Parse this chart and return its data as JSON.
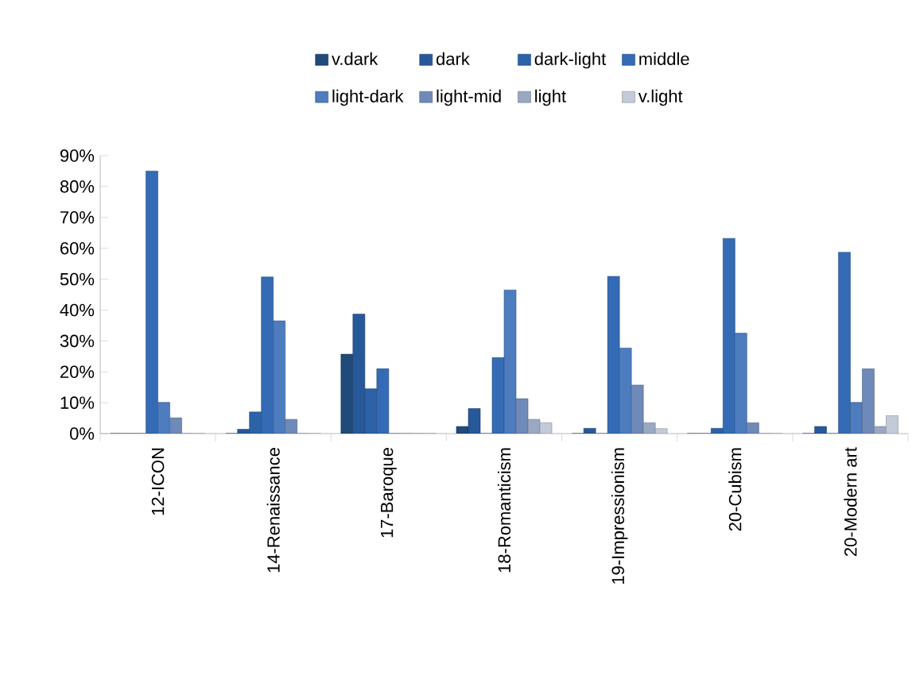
{
  "chart_data": {
    "type": "bar",
    "categories": [
      "12-ICON",
      "14-Renaissance",
      "17-Baroque",
      "18-Romanticism",
      "19-Impressionism",
      "20-Cubism",
      "20-Modern art"
    ],
    "series": [
      {
        "name": "v.dark",
        "color": "#1f4a7a",
        "values": [
          0,
          0,
          25.7,
          2.3,
          0,
          0,
          0
        ]
      },
      {
        "name": "dark",
        "color": "#27589a",
        "values": [
          0,
          1.4,
          38.7,
          8.1,
          1.7,
          0,
          2.3
        ]
      },
      {
        "name": "dark-light",
        "color": "#2c62a8",
        "values": [
          0,
          7.0,
          14.5,
          0,
          0,
          1.7,
          0
        ]
      },
      {
        "name": "middle",
        "color": "#346bb4",
        "values": [
          85,
          50.7,
          21.0,
          24.6,
          50.9,
          63.2,
          58.7
        ]
      },
      {
        "name": "light-dark",
        "color": "#4d7cbf",
        "values": [
          10.1,
          36.5,
          0,
          46.5,
          27.7,
          32.5,
          10.1
        ]
      },
      {
        "name": "light-mid",
        "color": "#6f8ab8",
        "values": [
          5.1,
          4.6,
          0,
          11.3,
          15.7,
          3.5,
          21.0
        ]
      },
      {
        "name": "light",
        "color": "#9aa8c2",
        "values": [
          0,
          0,
          0,
          4.6,
          3.5,
          0,
          2.3
        ]
      },
      {
        "name": "v.light",
        "color": "#c3cad8",
        "values": [
          0,
          0,
          0,
          3.5,
          1.6,
          0,
          5.8
        ]
      }
    ],
    "ylim": [
      0,
      90
    ],
    "yticks": [
      {
        "value": 0,
        "label": "0%"
      },
      {
        "value": 10,
        "label": "10%"
      },
      {
        "value": 20,
        "label": "20%"
      },
      {
        "value": 30,
        "label": "30%"
      },
      {
        "value": 40,
        "label": "40%"
      },
      {
        "value": 50,
        "label": "50%"
      },
      {
        "value": 60,
        "label": "60%"
      },
      {
        "value": 70,
        "label": "70%"
      },
      {
        "value": 80,
        "label": "80%"
      },
      {
        "value": 90,
        "label": "90%"
      }
    ],
    "legend": "top",
    "grid": false
  }
}
